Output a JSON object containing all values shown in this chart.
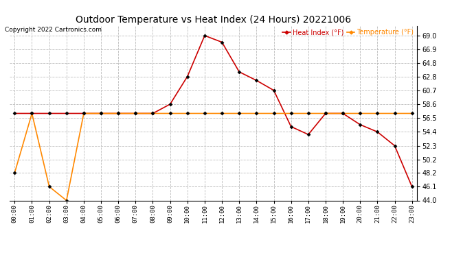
{
  "title": "Outdoor Temperature vs Heat Index (24 Hours) 20221006",
  "copyright_text": "Copyright 2022 Cartronics.com",
  "legend_heat_index": "Heat Index (°F)",
  "legend_temperature": "Temperature (°F)",
  "hours": [
    0,
    1,
    2,
    3,
    4,
    5,
    6,
    7,
    8,
    9,
    10,
    11,
    12,
    13,
    14,
    15,
    16,
    17,
    18,
    19,
    20,
    21,
    22,
    23
  ],
  "heat_index": [
    57.2,
    57.2,
    57.2,
    57.2,
    57.2,
    57.2,
    57.2,
    57.2,
    57.2,
    58.6,
    62.8,
    69.0,
    68.0,
    63.5,
    62.2,
    60.7,
    55.2,
    54.0,
    57.2,
    57.2,
    55.5,
    54.4,
    52.3,
    46.1
  ],
  "temperature": [
    48.2,
    57.2,
    46.1,
    44.0,
    57.2,
    57.2,
    57.2,
    57.2,
    57.2,
    57.2,
    57.2,
    57.2,
    57.2,
    57.2,
    57.2,
    57.2,
    57.2,
    57.2,
    57.2,
    57.2,
    57.2,
    57.2,
    57.2,
    57.2
  ],
  "ylim_min": 44.0,
  "ylim_max": 70.5,
  "yticks": [
    44.0,
    46.1,
    48.2,
    50.2,
    52.3,
    54.4,
    56.5,
    58.6,
    60.7,
    62.8,
    64.8,
    66.9,
    69.0
  ],
  "heat_index_color": "#cc0000",
  "temperature_color": "#ff8800",
  "background_color": "#ffffff",
  "grid_color": "#bbbbbb",
  "title_fontsize": 10,
  "axis_fontsize": 7
}
